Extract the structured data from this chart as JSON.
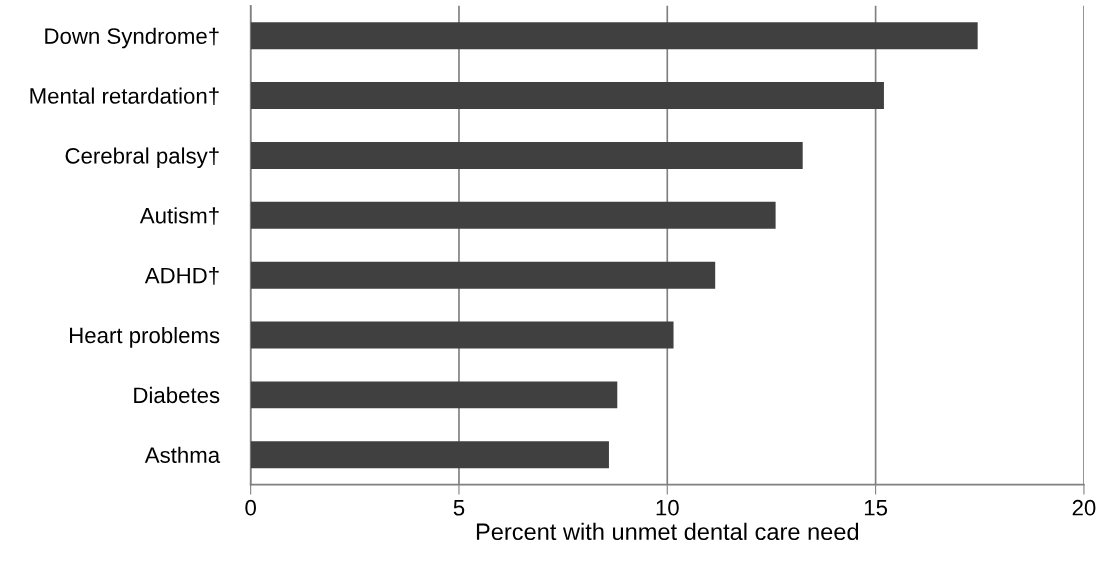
{
  "chart_data": {
    "type": "bar",
    "orientation": "horizontal",
    "categories": [
      "Down Syndrome†",
      "Mental retardation†",
      "Cerebral palsy†",
      "Autism†",
      "ADHD†",
      "Heart problems",
      "Diabetes",
      "Asthma"
    ],
    "values": [
      17.45,
      15.2,
      13.25,
      12.6,
      11.15,
      10.15,
      8.8,
      8.6
    ],
    "color": "#404040",
    "xlabel": "Percent with unmet dental care need",
    "xlim": [
      0,
      20
    ],
    "xticks": [
      0,
      5,
      10,
      15,
      20
    ],
    "grid": "x",
    "legend": false
  }
}
